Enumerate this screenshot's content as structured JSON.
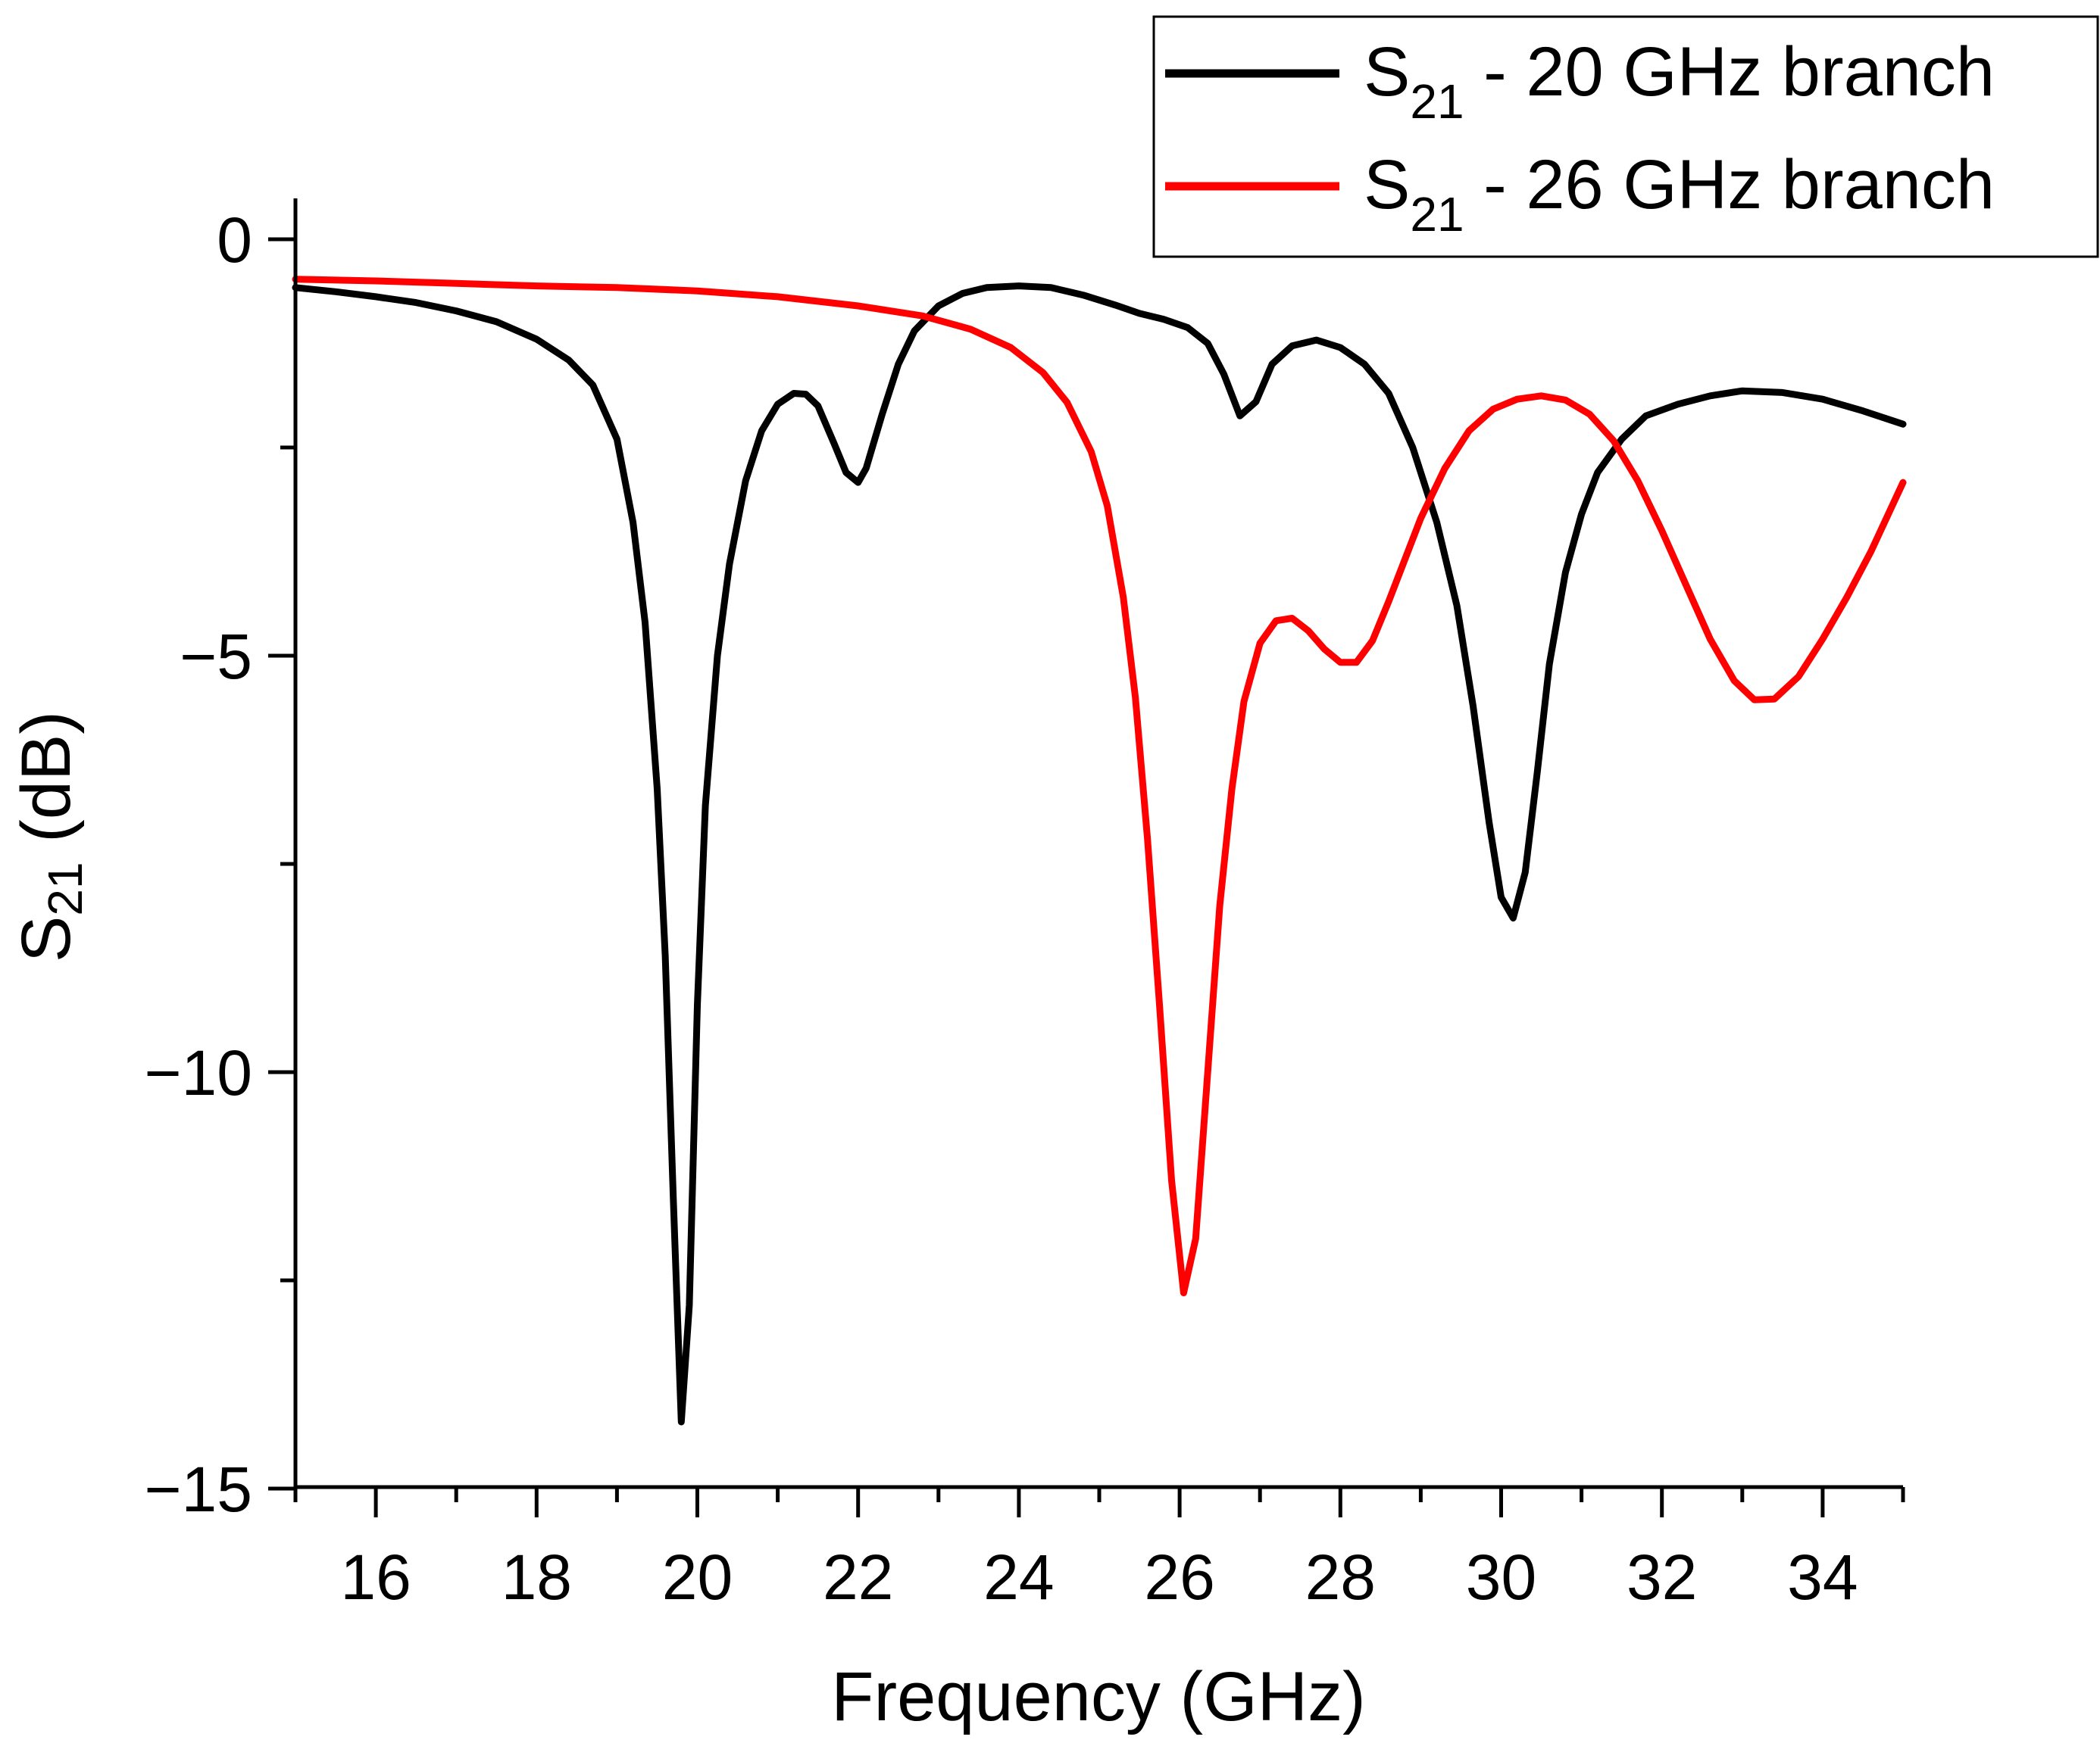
{
  "chart_data": {
    "type": "line",
    "title": "",
    "xlabel": "Frequency (GHz)",
    "ylabel": {
      "main": "S",
      "sub": "21",
      "rest": " (dB)"
    },
    "xlim": [
      15,
      35
    ],
    "ylim": [
      -15,
      0.5
    ],
    "x_ticks": [
      16,
      18,
      20,
      22,
      24,
      26,
      28,
      30,
      32,
      34
    ],
    "x_minor_ticks": [
      15,
      17,
      19,
      21,
      23,
      25,
      27,
      29,
      31,
      33,
      35
    ],
    "y_ticks": [
      0,
      -5,
      -10,
      -15
    ],
    "y_tick_labels": [
      "0",
      "−5",
      "−10",
      "−15"
    ],
    "legend_position": "top-right",
    "series": [
      {
        "name": "S21 - 20 GHz branch",
        "label": {
          "main": "S",
          "sub": "21",
          "rest": " - 20 GHz branch"
        },
        "color": "#000000",
        "points": [
          [
            15.0,
            -0.58
          ],
          [
            15.5,
            -0.63
          ],
          [
            16.0,
            -0.69
          ],
          [
            16.5,
            -0.76
          ],
          [
            17.0,
            -0.86
          ],
          [
            17.5,
            -0.99
          ],
          [
            18.0,
            -1.2
          ],
          [
            18.4,
            -1.45
          ],
          [
            18.7,
            -1.75
          ],
          [
            19.0,
            -2.4
          ],
          [
            19.2,
            -3.4
          ],
          [
            19.35,
            -4.6
          ],
          [
            19.5,
            -6.6
          ],
          [
            19.6,
            -8.6
          ],
          [
            19.7,
            -11.5
          ],
          [
            19.8,
            -14.2
          ],
          [
            19.9,
            -12.8
          ],
          [
            20.0,
            -9.2
          ],
          [
            20.1,
            -6.8
          ],
          [
            20.25,
            -5.0
          ],
          [
            20.4,
            -3.9
          ],
          [
            20.6,
            -2.9
          ],
          [
            20.8,
            -2.3
          ],
          [
            21.0,
            -1.98
          ],
          [
            21.2,
            -1.85
          ],
          [
            21.35,
            -1.86
          ],
          [
            21.5,
            -2.0
          ],
          [
            21.7,
            -2.45
          ],
          [
            21.85,
            -2.8
          ],
          [
            22.0,
            -2.92
          ],
          [
            22.1,
            -2.75
          ],
          [
            22.3,
            -2.1
          ],
          [
            22.5,
            -1.5
          ],
          [
            22.7,
            -1.1
          ],
          [
            23.0,
            -0.8
          ],
          [
            23.3,
            -0.65
          ],
          [
            23.6,
            -0.58
          ],
          [
            24.0,
            -0.56
          ],
          [
            24.4,
            -0.58
          ],
          [
            24.8,
            -0.67
          ],
          [
            25.2,
            -0.79
          ],
          [
            25.5,
            -0.89
          ],
          [
            25.8,
            -0.96
          ],
          [
            26.1,
            -1.06
          ],
          [
            26.35,
            -1.25
          ],
          [
            26.55,
            -1.62
          ],
          [
            26.75,
            -2.12
          ],
          [
            26.95,
            -1.95
          ],
          [
            27.15,
            -1.5
          ],
          [
            27.4,
            -1.28
          ],
          [
            27.7,
            -1.21
          ],
          [
            28.0,
            -1.3
          ],
          [
            28.3,
            -1.5
          ],
          [
            28.6,
            -1.85
          ],
          [
            28.9,
            -2.5
          ],
          [
            29.2,
            -3.4
          ],
          [
            29.45,
            -4.4
          ],
          [
            29.65,
            -5.6
          ],
          [
            29.85,
            -7.0
          ],
          [
            30.0,
            -7.9
          ],
          [
            30.15,
            -8.15
          ],
          [
            30.3,
            -7.6
          ],
          [
            30.45,
            -6.4
          ],
          [
            30.6,
            -5.1
          ],
          [
            30.8,
            -4.0
          ],
          [
            31.0,
            -3.3
          ],
          [
            31.2,
            -2.8
          ],
          [
            31.5,
            -2.4
          ],
          [
            31.8,
            -2.12
          ],
          [
            32.2,
            -1.98
          ],
          [
            32.6,
            -1.88
          ],
          [
            33.0,
            -1.82
          ],
          [
            33.5,
            -1.84
          ],
          [
            34.0,
            -1.92
          ],
          [
            34.5,
            -2.06
          ],
          [
            35.0,
            -2.22
          ]
        ]
      },
      {
        "name": "S21 - 26 GHz branch",
        "label": {
          "main": "S",
          "sub": "21",
          "rest": " - 26 GHz branch"
        },
        "color": "#ff0000",
        "points": [
          [
            15.0,
            -0.48
          ],
          [
            16.0,
            -0.5
          ],
          [
            17.0,
            -0.53
          ],
          [
            18.0,
            -0.56
          ],
          [
            19.0,
            -0.58
          ],
          [
            20.0,
            -0.62
          ],
          [
            21.0,
            -0.69
          ],
          [
            22.0,
            -0.8
          ],
          [
            22.8,
            -0.92
          ],
          [
            23.4,
            -1.08
          ],
          [
            23.9,
            -1.3
          ],
          [
            24.3,
            -1.6
          ],
          [
            24.6,
            -1.96
          ],
          [
            24.9,
            -2.55
          ],
          [
            25.1,
            -3.2
          ],
          [
            25.3,
            -4.3
          ],
          [
            25.45,
            -5.5
          ],
          [
            25.6,
            -7.2
          ],
          [
            25.75,
            -9.2
          ],
          [
            25.9,
            -11.3
          ],
          [
            26.05,
            -12.65
          ],
          [
            26.2,
            -12.0
          ],
          [
            26.35,
            -10.0
          ],
          [
            26.5,
            -8.0
          ],
          [
            26.65,
            -6.6
          ],
          [
            26.8,
            -5.55
          ],
          [
            27.0,
            -4.85
          ],
          [
            27.2,
            -4.58
          ],
          [
            27.4,
            -4.55
          ],
          [
            27.6,
            -4.7
          ],
          [
            27.8,
            -4.92
          ],
          [
            28.0,
            -5.08
          ],
          [
            28.2,
            -5.08
          ],
          [
            28.4,
            -4.82
          ],
          [
            28.6,
            -4.35
          ],
          [
            28.8,
            -3.85
          ],
          [
            29.0,
            -3.35
          ],
          [
            29.3,
            -2.75
          ],
          [
            29.6,
            -2.3
          ],
          [
            29.9,
            -2.04
          ],
          [
            30.2,
            -1.92
          ],
          [
            30.5,
            -1.88
          ],
          [
            30.8,
            -1.93
          ],
          [
            31.1,
            -2.1
          ],
          [
            31.4,
            -2.42
          ],
          [
            31.7,
            -2.9
          ],
          [
            32.0,
            -3.5
          ],
          [
            32.3,
            -4.15
          ],
          [
            32.6,
            -4.8
          ],
          [
            32.9,
            -5.3
          ],
          [
            33.15,
            -5.53
          ],
          [
            33.4,
            -5.52
          ],
          [
            33.7,
            -5.25
          ],
          [
            34.0,
            -4.8
          ],
          [
            34.3,
            -4.3
          ],
          [
            34.6,
            -3.75
          ],
          [
            35.0,
            -2.92
          ]
        ]
      }
    ]
  }
}
